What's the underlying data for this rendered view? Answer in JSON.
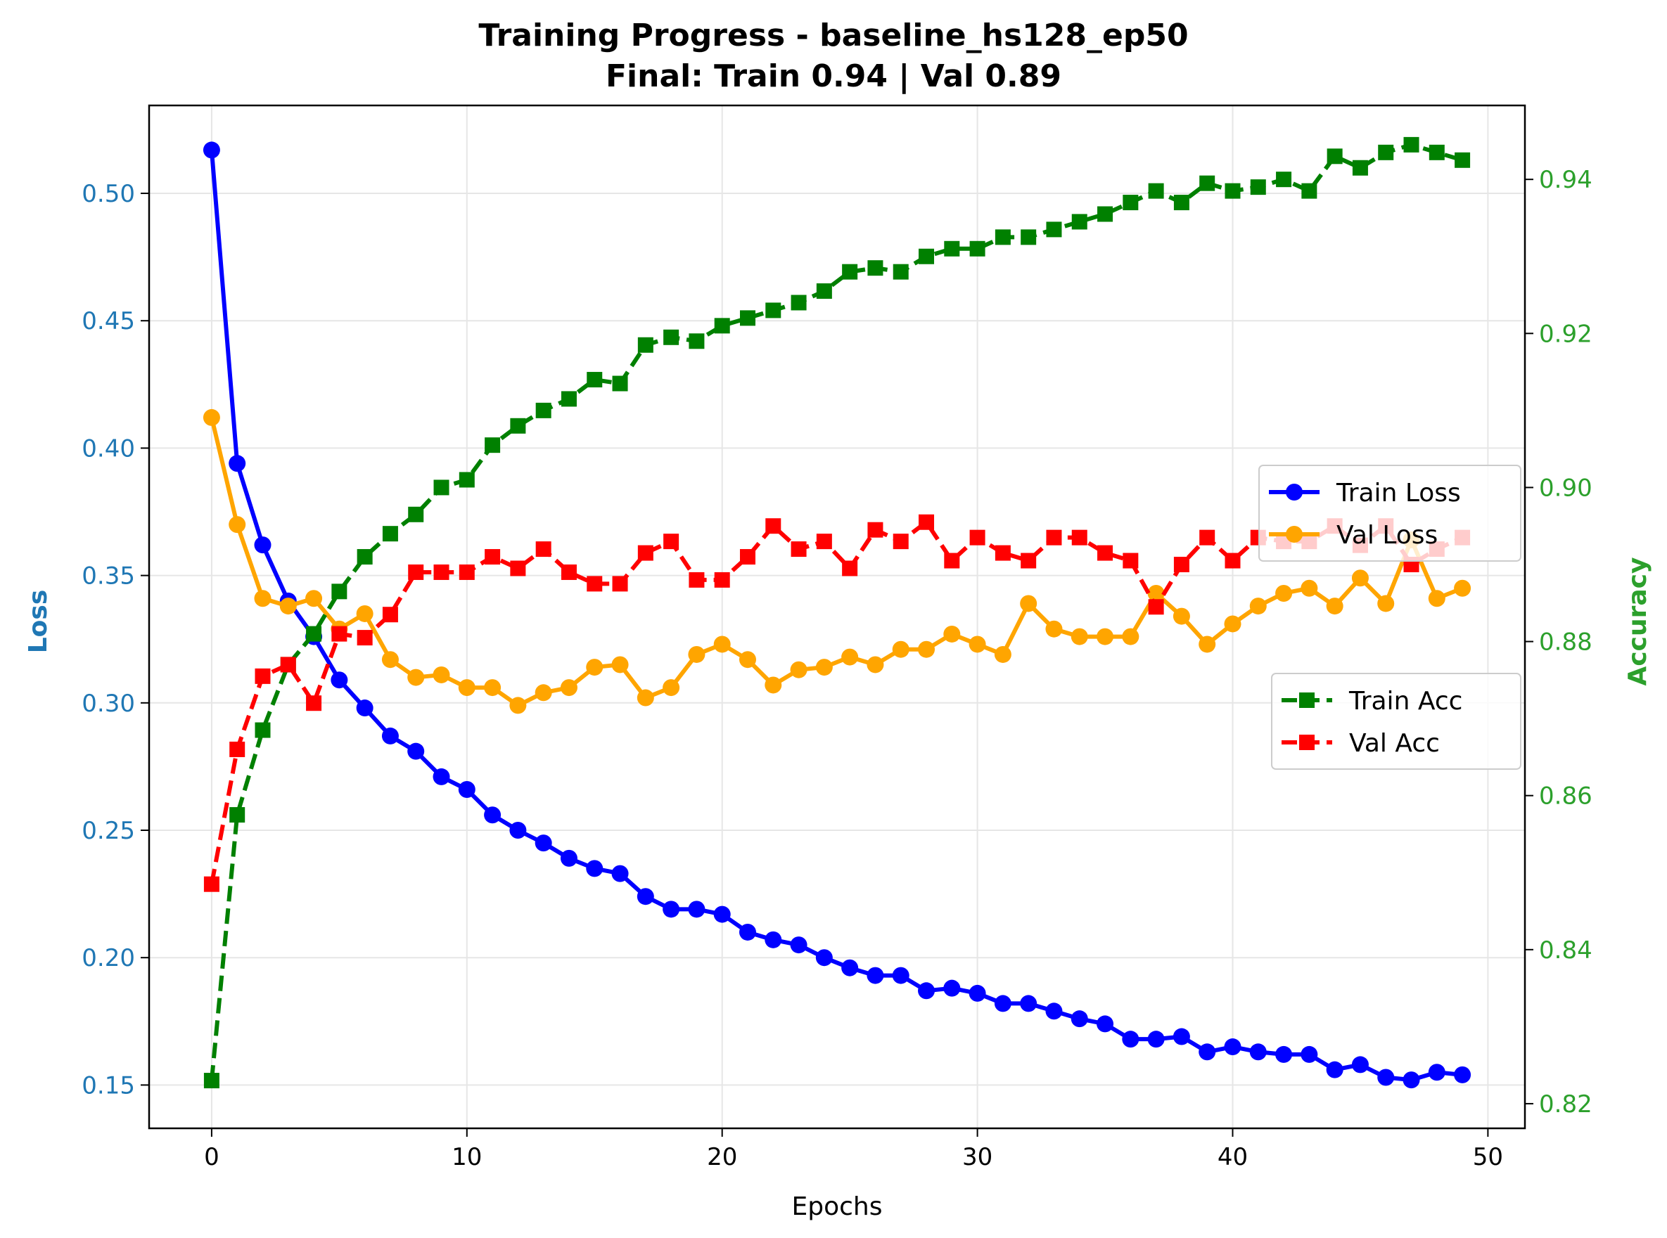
{
  "chart_data": {
    "type": "line",
    "title": "Training Progress - baseline_hs128_ep50",
    "subtitle": "Final: Train 0.94 | Val 0.89",
    "xlabel": "Epochs",
    "ylabel_left": "Loss",
    "ylabel_right": "Accuracy",
    "xlim": [
      -2.45,
      51.45
    ],
    "ylim_left": [
      0.133,
      0.5345
    ],
    "ylim_right": [
      0.8168,
      0.9496
    ],
    "x_ticks": [
      0,
      10,
      20,
      30,
      40,
      50
    ],
    "x_tick_labels": [
      "0",
      "10",
      "20",
      "30",
      "40",
      "50"
    ],
    "y_left_ticks": [
      0.15,
      0.2,
      0.25,
      0.3,
      0.35,
      0.4,
      0.45,
      0.5
    ],
    "y_left_tick_labels": [
      "0.15",
      "0.20",
      "0.25",
      "0.30",
      "0.35",
      "0.40",
      "0.45",
      "0.50"
    ],
    "y_right_ticks": [
      0.82,
      0.84,
      0.86,
      0.88,
      0.9,
      0.92,
      0.94
    ],
    "y_right_tick_labels": [
      "0.82",
      "0.84",
      "0.86",
      "0.88",
      "0.90",
      "0.92",
      "0.94"
    ],
    "grid": true,
    "x": [
      0,
      1,
      2,
      3,
      4,
      5,
      6,
      7,
      8,
      9,
      10,
      11,
      12,
      13,
      14,
      15,
      16,
      17,
      18,
      19,
      20,
      21,
      22,
      23,
      24,
      25,
      26,
      27,
      28,
      29,
      30,
      31,
      32,
      33,
      34,
      35,
      36,
      37,
      38,
      39,
      40,
      41,
      42,
      43,
      44,
      45,
      46,
      47,
      48,
      49
    ],
    "series": [
      {
        "name": "Train Loss",
        "axis": "left",
        "color": "#0000ff",
        "linestyle": "solid",
        "marker": "circle",
        "values": [
          0.517,
          0.394,
          0.362,
          0.34,
          0.326,
          0.309,
          0.298,
          0.287,
          0.281,
          0.271,
          0.266,
          0.256,
          0.25,
          0.245,
          0.239,
          0.235,
          0.233,
          0.224,
          0.219,
          0.219,
          0.217,
          0.21,
          0.207,
          0.205,
          0.2,
          0.196,
          0.193,
          0.193,
          0.187,
          0.188,
          0.186,
          0.182,
          0.182,
          0.179,
          0.176,
          0.174,
          0.168,
          0.168,
          0.169,
          0.163,
          0.165,
          0.163,
          0.162,
          0.162,
          0.156,
          0.158,
          0.153,
          0.152,
          0.155,
          0.154
        ]
      },
      {
        "name": "Val Loss",
        "axis": "left",
        "color": "#ffa500",
        "linestyle": "solid",
        "marker": "circle",
        "values": [
          0.412,
          0.37,
          0.341,
          0.338,
          0.341,
          0.329,
          0.335,
          0.317,
          0.31,
          0.311,
          0.306,
          0.306,
          0.299,
          0.304,
          0.306,
          0.314,
          0.315,
          0.302,
          0.306,
          0.319,
          0.323,
          0.317,
          0.307,
          0.313,
          0.314,
          0.318,
          0.315,
          0.321,
          0.321,
          0.327,
          0.323,
          0.319,
          0.339,
          0.329,
          0.326,
          0.326,
          0.326,
          0.343,
          0.334,
          0.323,
          0.331,
          0.338,
          0.343,
          0.345,
          0.338,
          0.349,
          0.339,
          0.364,
          0.341,
          0.345
        ]
      },
      {
        "name": "Train Acc",
        "axis": "right",
        "color": "#008000",
        "linestyle": "dashed",
        "marker": "square",
        "values": [
          0.823,
          0.8575,
          0.8685,
          0.877,
          0.881,
          0.8865,
          0.891,
          0.894,
          0.8965,
          0.9,
          0.901,
          0.9055,
          0.908,
          0.91,
          0.9115,
          0.914,
          0.9135,
          0.9185,
          0.9195,
          0.919,
          0.921,
          0.922,
          0.923,
          0.924,
          0.9255,
          0.928,
          0.9285,
          0.928,
          0.93,
          0.931,
          0.931,
          0.9325,
          0.9325,
          0.9335,
          0.9345,
          0.9355,
          0.937,
          0.9385,
          0.937,
          0.9395,
          0.9385,
          0.939,
          0.94,
          0.9385,
          0.943,
          0.9415,
          0.9435,
          0.9445,
          0.9435,
          0.9425
        ]
      },
      {
        "name": "Val Acc",
        "axis": "right",
        "color": "#ff0000",
        "linestyle": "dashed",
        "marker": "square",
        "values": [
          0.8485,
          0.866,
          0.8755,
          0.877,
          0.872,
          0.881,
          0.8805,
          0.8835,
          0.889,
          0.889,
          0.889,
          0.891,
          0.8895,
          0.892,
          0.889,
          0.8875,
          0.8875,
          0.8915,
          0.893,
          0.888,
          0.888,
          0.891,
          0.895,
          0.892,
          0.893,
          0.8895,
          0.8945,
          0.893,
          0.8955,
          0.8905,
          0.8935,
          0.8915,
          0.8905,
          0.8935,
          0.8935,
          0.8915,
          0.8905,
          0.8845,
          0.89,
          0.8935,
          0.8905,
          0.8935,
          0.893,
          0.893,
          0.895,
          0.8925,
          0.895,
          0.89,
          0.892,
          0.8935
        ]
      }
    ],
    "legends": [
      {
        "placement": "center-right upper",
        "entries": [
          "Train Loss",
          "Val Loss"
        ]
      },
      {
        "placement": "center-right lower",
        "entries": [
          "Train Acc",
          "Val Acc"
        ]
      }
    ],
    "colors": {
      "left_axis": "#1f77b4",
      "right_axis": "#2ca02c",
      "grid": "#e6e6e6"
    }
  }
}
